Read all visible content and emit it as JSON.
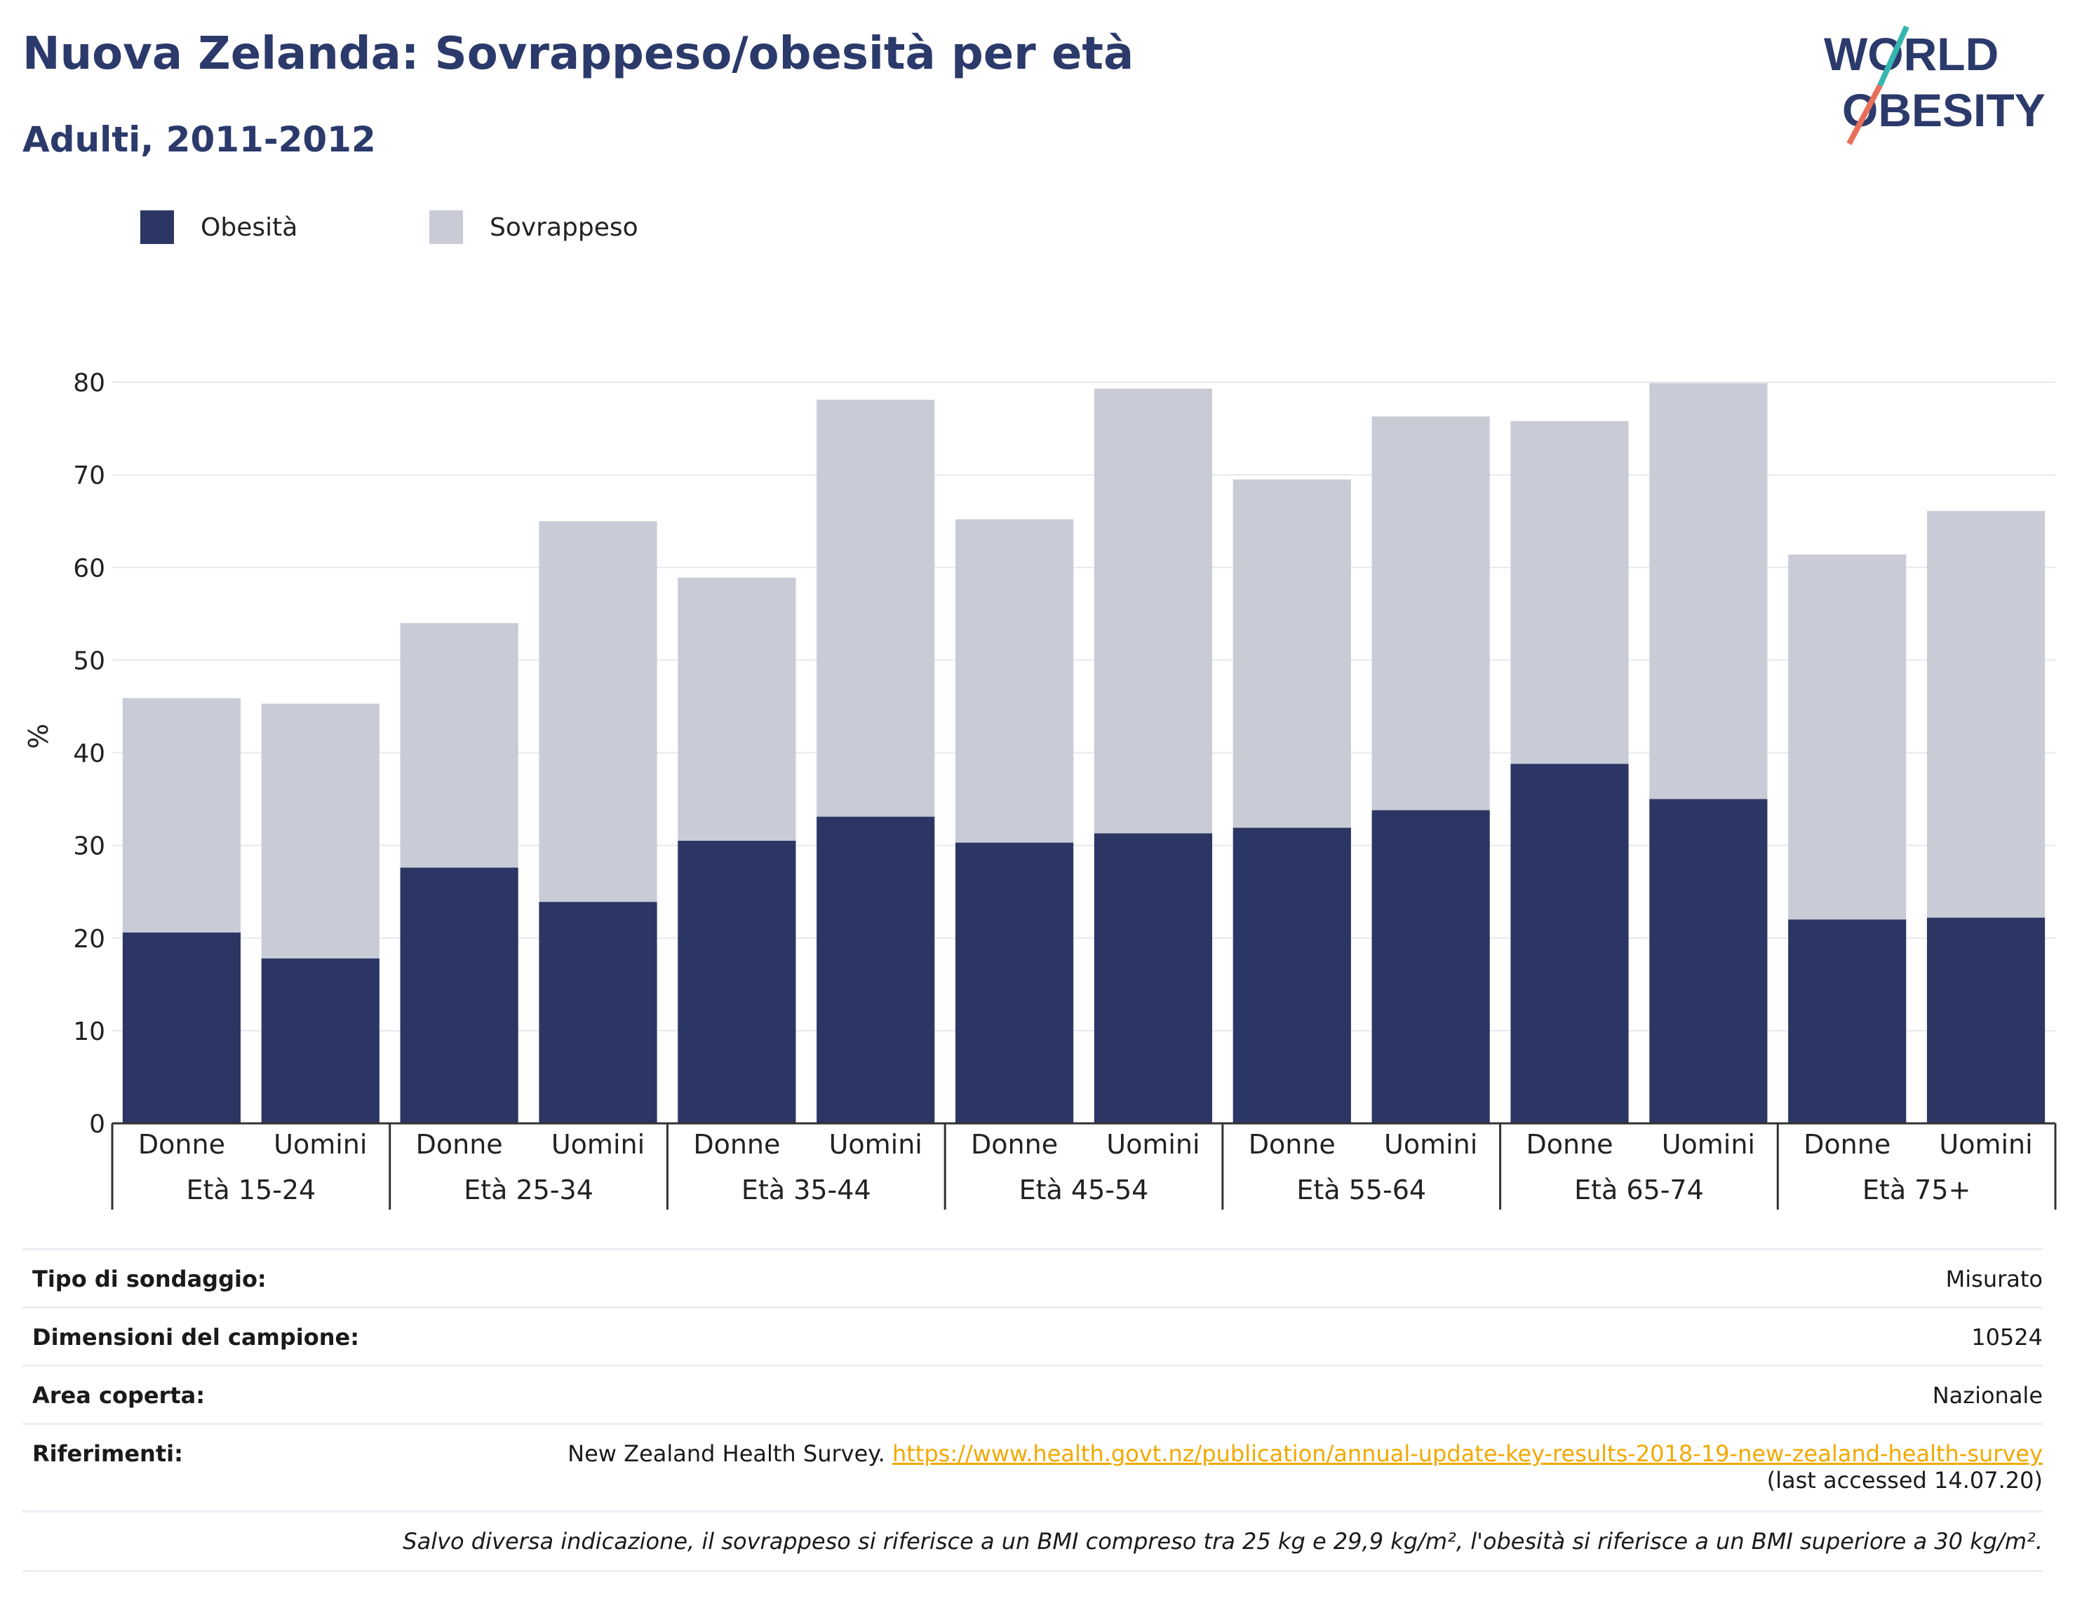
{
  "header": {
    "title": "Nuova Zelanda: Sovrappeso/obesità per età",
    "subtitle": "Adulti, 2011-2012"
  },
  "logo": {
    "line1": "WORLD",
    "line2": "OBESITY",
    "accent_colors": [
      "#36b6b0",
      "#e8705a"
    ]
  },
  "colors": {
    "obesity": "#2b3664",
    "overweight": "#c9cbd7",
    "brand_text": "#2b3a6b",
    "link": "#f2a900"
  },
  "chart_data": {
    "type": "bar",
    "stacked": true,
    "ylabel": "%",
    "ylim": [
      0,
      80
    ],
    "yticks": [
      0,
      10,
      20,
      30,
      40,
      50,
      60,
      70,
      80
    ],
    "grid": true,
    "legend_position": "top-left",
    "groups": [
      "Età 15-24",
      "Età 25-34",
      "Età 35-44",
      "Età 45-54",
      "Età 55-64",
      "Età 65-74",
      "Età 75+"
    ],
    "categories": [
      "Donne",
      "Uomini",
      "Donne",
      "Uomini",
      "Donne",
      "Uomini",
      "Donne",
      "Uomini",
      "Donne",
      "Uomini",
      "Donne",
      "Uomini",
      "Donne",
      "Uomini"
    ],
    "series": [
      {
        "name": "Obesità",
        "values": [
          20.6,
          17.8,
          27.6,
          23.9,
          30.5,
          33.1,
          30.3,
          31.3,
          31.9,
          33.8,
          38.8,
          35.0,
          22.0,
          22.2
        ]
      },
      {
        "name": "Sovrappeso",
        "values": [
          25.3,
          27.5,
          26.4,
          41.1,
          28.4,
          45.0,
          34.9,
          48.0,
          37.6,
          42.5,
          37.0,
          44.9,
          39.4,
          43.9
        ]
      }
    ]
  },
  "info": {
    "survey_label": "Tipo di sondaggio:",
    "survey_value": "Misurato",
    "sample_label": "Dimensioni del campione:",
    "sample_value": "10524",
    "area_label": "Area coperta:",
    "area_value": "Nazionale",
    "ref_label": "Riferimenti:",
    "ref_text": "New Zealand Health Survey.",
    "ref_link": "https://www.health.govt.nz/publication/annual-update-key-results-2018-19-new-zealand-health-survey",
    "ref_accessed": "(last accessed 14.07.20)",
    "note": "Salvo diversa indicazione, il sovrappeso si riferisce a un BMI compreso tra 25 kg e 29,9 kg/m², l'obesità si riferisce a un BMI superiore a 30 kg/m²."
  }
}
